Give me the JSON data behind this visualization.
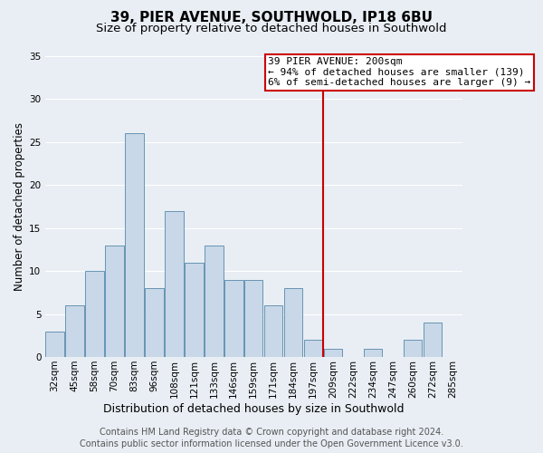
{
  "title": "39, PIER AVENUE, SOUTHWOLD, IP18 6BU",
  "subtitle": "Size of property relative to detached houses in Southwold",
  "xlabel": "Distribution of detached houses by size in Southwold",
  "ylabel": "Number of detached properties",
  "bar_labels": [
    "32sqm",
    "45sqm",
    "58sqm",
    "70sqm",
    "83sqm",
    "96sqm",
    "108sqm",
    "121sqm",
    "133sqm",
    "146sqm",
    "159sqm",
    "171sqm",
    "184sqm",
    "197sqm",
    "209sqm",
    "222sqm",
    "234sqm",
    "247sqm",
    "260sqm",
    "272sqm",
    "285sqm"
  ],
  "bar_values": [
    3,
    6,
    10,
    13,
    26,
    8,
    17,
    11,
    13,
    9,
    9,
    6,
    8,
    2,
    1,
    0,
    1,
    0,
    2,
    4,
    0
  ],
  "bar_color": "#c8d8e8",
  "bar_edge_color": "#5588aa",
  "background_color": "#e8eef4",
  "grid_color": "#ffffff",
  "vline_color": "#cc0000",
  "annotation_title": "39 PIER AVENUE: 200sqm",
  "annotation_line1": "← 94% of detached houses are smaller (139)",
  "annotation_line2": "6% of semi-detached houses are larger (9) →",
  "annotation_box_color": "#ffffff",
  "annotation_box_edge_color": "#cc0000",
  "ylim": [
    0,
    35
  ],
  "yticks": [
    0,
    5,
    10,
    15,
    20,
    25,
    30,
    35
  ],
  "footer_line1": "Contains HM Land Registry data © Crown copyright and database right 2024.",
  "footer_line2": "Contains public sector information licensed under the Open Government Licence v3.0.",
  "title_fontsize": 11,
  "subtitle_fontsize": 9.5,
  "xlabel_fontsize": 9,
  "ylabel_fontsize": 8.5,
  "tick_fontsize": 7.5,
  "footer_fontsize": 7,
  "annotation_fontsize": 8
}
